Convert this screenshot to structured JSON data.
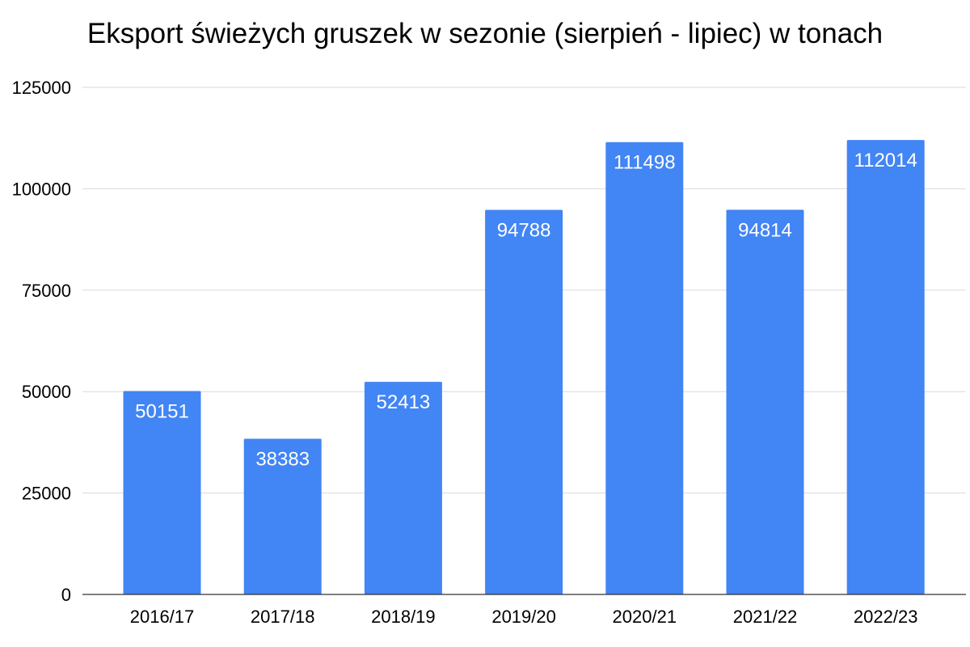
{
  "chart_data": {
    "type": "bar",
    "title": "Eksport świeżych gruszek w sezonie (sierpień - lipiec) w tonach",
    "xlabel": "",
    "ylabel": "",
    "categories": [
      "2016/17",
      "2017/18",
      "2018/19",
      "2019/20",
      "2020/21",
      "2021/22",
      "2022/23"
    ],
    "values": [
      50151,
      38383,
      52413,
      94788,
      111498,
      94814,
      112014
    ],
    "data_labels": [
      "50151",
      "38383",
      "52413",
      "94788",
      "111498",
      "94814",
      "112014"
    ],
    "ylim": [
      0,
      125000
    ],
    "yticks": [
      0,
      25000,
      50000,
      75000,
      100000,
      125000
    ],
    "ytick_labels": [
      "0",
      "25000",
      "50000",
      "75000",
      "100000",
      "125000"
    ],
    "grid": true,
    "legend": "none",
    "colors": {
      "bar": "#4285f4",
      "grid": "#d9d9d9",
      "baseline": "#333333",
      "data_label": "#ffffff"
    }
  }
}
